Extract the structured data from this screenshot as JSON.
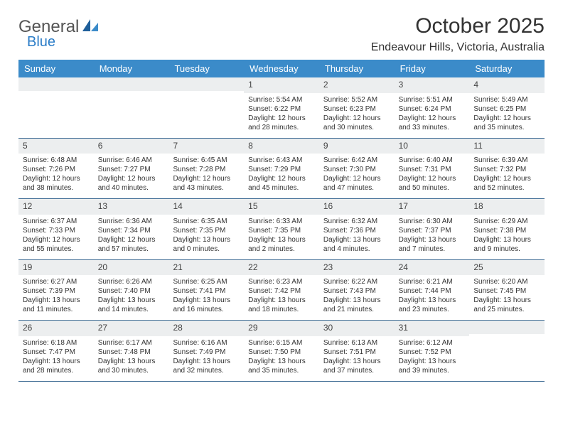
{
  "brand": {
    "word1": "General",
    "word2": "Blue",
    "accent_color": "#2a7cc7"
  },
  "title": "October 2025",
  "location": "Endeavour Hills, Victoria, Australia",
  "colors": {
    "header_bg": "#3b8bc9",
    "header_text": "#ffffff",
    "daynum_bg": "#eceeef",
    "row_border": "#3b6a93",
    "text": "#333333",
    "page_bg": "#ffffff"
  },
  "day_headers": [
    "Sunday",
    "Monday",
    "Tuesday",
    "Wednesday",
    "Thursday",
    "Friday",
    "Saturday"
  ],
  "weeks": [
    [
      {
        "n": "",
        "lines": []
      },
      {
        "n": "",
        "lines": []
      },
      {
        "n": "",
        "lines": []
      },
      {
        "n": "1",
        "lines": [
          "Sunrise: 5:54 AM",
          "Sunset: 6:22 PM",
          "Daylight: 12 hours",
          "and 28 minutes."
        ]
      },
      {
        "n": "2",
        "lines": [
          "Sunrise: 5:52 AM",
          "Sunset: 6:23 PM",
          "Daylight: 12 hours",
          "and 30 minutes."
        ]
      },
      {
        "n": "3",
        "lines": [
          "Sunrise: 5:51 AM",
          "Sunset: 6:24 PM",
          "Daylight: 12 hours",
          "and 33 minutes."
        ]
      },
      {
        "n": "4",
        "lines": [
          "Sunrise: 5:49 AM",
          "Sunset: 6:25 PM",
          "Daylight: 12 hours",
          "and 35 minutes."
        ]
      }
    ],
    [
      {
        "n": "5",
        "lines": [
          "Sunrise: 6:48 AM",
          "Sunset: 7:26 PM",
          "Daylight: 12 hours",
          "and 38 minutes."
        ]
      },
      {
        "n": "6",
        "lines": [
          "Sunrise: 6:46 AM",
          "Sunset: 7:27 PM",
          "Daylight: 12 hours",
          "and 40 minutes."
        ]
      },
      {
        "n": "7",
        "lines": [
          "Sunrise: 6:45 AM",
          "Sunset: 7:28 PM",
          "Daylight: 12 hours",
          "and 43 minutes."
        ]
      },
      {
        "n": "8",
        "lines": [
          "Sunrise: 6:43 AM",
          "Sunset: 7:29 PM",
          "Daylight: 12 hours",
          "and 45 minutes."
        ]
      },
      {
        "n": "9",
        "lines": [
          "Sunrise: 6:42 AM",
          "Sunset: 7:30 PM",
          "Daylight: 12 hours",
          "and 47 minutes."
        ]
      },
      {
        "n": "10",
        "lines": [
          "Sunrise: 6:40 AM",
          "Sunset: 7:31 PM",
          "Daylight: 12 hours",
          "and 50 minutes."
        ]
      },
      {
        "n": "11",
        "lines": [
          "Sunrise: 6:39 AM",
          "Sunset: 7:32 PM",
          "Daylight: 12 hours",
          "and 52 minutes."
        ]
      }
    ],
    [
      {
        "n": "12",
        "lines": [
          "Sunrise: 6:37 AM",
          "Sunset: 7:33 PM",
          "Daylight: 12 hours",
          "and 55 minutes."
        ]
      },
      {
        "n": "13",
        "lines": [
          "Sunrise: 6:36 AM",
          "Sunset: 7:34 PM",
          "Daylight: 12 hours",
          "and 57 minutes."
        ]
      },
      {
        "n": "14",
        "lines": [
          "Sunrise: 6:35 AM",
          "Sunset: 7:35 PM",
          "Daylight: 13 hours",
          "and 0 minutes."
        ]
      },
      {
        "n": "15",
        "lines": [
          "Sunrise: 6:33 AM",
          "Sunset: 7:35 PM",
          "Daylight: 13 hours",
          "and 2 minutes."
        ]
      },
      {
        "n": "16",
        "lines": [
          "Sunrise: 6:32 AM",
          "Sunset: 7:36 PM",
          "Daylight: 13 hours",
          "and 4 minutes."
        ]
      },
      {
        "n": "17",
        "lines": [
          "Sunrise: 6:30 AM",
          "Sunset: 7:37 PM",
          "Daylight: 13 hours",
          "and 7 minutes."
        ]
      },
      {
        "n": "18",
        "lines": [
          "Sunrise: 6:29 AM",
          "Sunset: 7:38 PM",
          "Daylight: 13 hours",
          "and 9 minutes."
        ]
      }
    ],
    [
      {
        "n": "19",
        "lines": [
          "Sunrise: 6:27 AM",
          "Sunset: 7:39 PM",
          "Daylight: 13 hours",
          "and 11 minutes."
        ]
      },
      {
        "n": "20",
        "lines": [
          "Sunrise: 6:26 AM",
          "Sunset: 7:40 PM",
          "Daylight: 13 hours",
          "and 14 minutes."
        ]
      },
      {
        "n": "21",
        "lines": [
          "Sunrise: 6:25 AM",
          "Sunset: 7:41 PM",
          "Daylight: 13 hours",
          "and 16 minutes."
        ]
      },
      {
        "n": "22",
        "lines": [
          "Sunrise: 6:23 AM",
          "Sunset: 7:42 PM",
          "Daylight: 13 hours",
          "and 18 minutes."
        ]
      },
      {
        "n": "23",
        "lines": [
          "Sunrise: 6:22 AM",
          "Sunset: 7:43 PM",
          "Daylight: 13 hours",
          "and 21 minutes."
        ]
      },
      {
        "n": "24",
        "lines": [
          "Sunrise: 6:21 AM",
          "Sunset: 7:44 PM",
          "Daylight: 13 hours",
          "and 23 minutes."
        ]
      },
      {
        "n": "25",
        "lines": [
          "Sunrise: 6:20 AM",
          "Sunset: 7:45 PM",
          "Daylight: 13 hours",
          "and 25 minutes."
        ]
      }
    ],
    [
      {
        "n": "26",
        "lines": [
          "Sunrise: 6:18 AM",
          "Sunset: 7:47 PM",
          "Daylight: 13 hours",
          "and 28 minutes."
        ]
      },
      {
        "n": "27",
        "lines": [
          "Sunrise: 6:17 AM",
          "Sunset: 7:48 PM",
          "Daylight: 13 hours",
          "and 30 minutes."
        ]
      },
      {
        "n": "28",
        "lines": [
          "Sunrise: 6:16 AM",
          "Sunset: 7:49 PM",
          "Daylight: 13 hours",
          "and 32 minutes."
        ]
      },
      {
        "n": "29",
        "lines": [
          "Sunrise: 6:15 AM",
          "Sunset: 7:50 PM",
          "Daylight: 13 hours",
          "and 35 minutes."
        ]
      },
      {
        "n": "30",
        "lines": [
          "Sunrise: 6:13 AM",
          "Sunset: 7:51 PM",
          "Daylight: 13 hours",
          "and 37 minutes."
        ]
      },
      {
        "n": "31",
        "lines": [
          "Sunrise: 6:12 AM",
          "Sunset: 7:52 PM",
          "Daylight: 13 hours",
          "and 39 minutes."
        ]
      },
      {
        "n": "",
        "lines": []
      }
    ]
  ]
}
